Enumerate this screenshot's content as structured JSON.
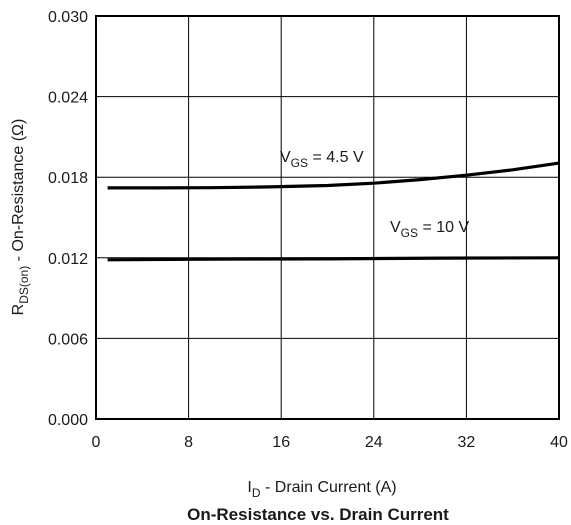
{
  "chart_data": {
    "type": "line",
    "title": "On-Resistance vs. Drain Current",
    "xlabel": {
      "main": "I",
      "sub": "D",
      "rest": " - Drain Current (A)"
    },
    "ylabel": {
      "main": "R",
      "sub": "DS(on)",
      "rest": " - On-Resistance (Ω)"
    },
    "xlim": [
      0,
      40
    ],
    "ylim": [
      0,
      0.03
    ],
    "x_ticks": [
      0,
      8,
      16,
      24,
      32,
      40
    ],
    "x_tick_labels": [
      "0",
      "8",
      "16",
      "24",
      "32",
      "40"
    ],
    "y_ticks": [
      0,
      0.006,
      0.012,
      0.018,
      0.024,
      0.03
    ],
    "y_tick_labels": [
      "0.000",
      "0.006",
      "0.012",
      "0.018",
      "0.024",
      "0.030"
    ],
    "grid": true,
    "series": [
      {
        "name": "VGS = 4.5 V",
        "label": {
          "main": "V",
          "sub": "GS",
          "rest": " = 4.5 V"
        },
        "color": "#000000",
        "x": [
          1,
          5,
          10,
          15,
          20,
          24,
          28,
          32,
          36,
          40
        ],
        "y": [
          0.0172,
          0.0172,
          0.01722,
          0.01728,
          0.01738,
          0.01755,
          0.01782,
          0.01815,
          0.01855,
          0.01905
        ]
      },
      {
        "name": "VGS = 10 V",
        "label": {
          "main": "V",
          "sub": "GS",
          "rest": " = 10 V"
        },
        "color": "#000000",
        "x": [
          1,
          10,
          20,
          30,
          40
        ],
        "y": [
          0.01185,
          0.0119,
          0.01192,
          0.01198,
          0.012
        ]
      }
    ]
  }
}
